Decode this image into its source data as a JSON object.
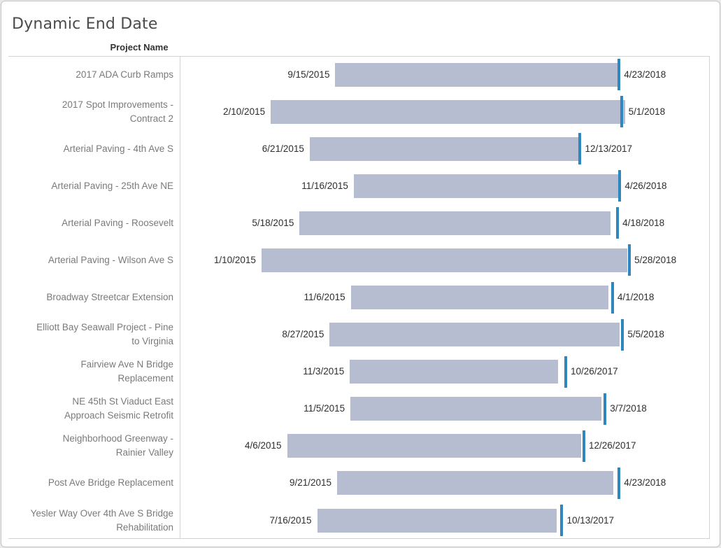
{
  "window": {
    "title": "Dynamic End Date"
  },
  "colors": {
    "bar": "#b7bdd1",
    "end_tick": "#2f87bd",
    "pane_border": "#d2d2d2",
    "window_border": "#c4c4c4",
    "row_label_text": "#7a7a7a",
    "date_label_text": "#2e2e2e",
    "title_text": "#4b4b4b",
    "header_text": "#333333",
    "page_bg": "#e9e9e9"
  },
  "chart_data": {
    "type": "gantt",
    "title": "Dynamic End Date",
    "row_header": "Project Name",
    "legend": "none",
    "grid": "off",
    "x_axis": {
      "labels_visible": false,
      "min_date": "4/15/2014",
      "max_date": "3/1/2019"
    },
    "marks": {
      "bar_means": "project duration (start date to current phase end, estimated)",
      "tick_means": "dynamic end date (labeled)"
    },
    "rows": [
      {
        "project": "2017 ADA Curb Ramps",
        "project_lines": [
          "2017 ADA Curb Ramps"
        ],
        "start": "9/15/2015",
        "end": "4/23/2018",
        "bar_end_est": "4/23/2018"
      },
      {
        "project": "2017 Spot Improvements - Contract 2",
        "project_lines": [
          "2017 Spot Improvements -",
          "Contract 2"
        ],
        "start": "2/10/2015",
        "end": "5/1/2018",
        "bar_end_est": "5/15/2018"
      },
      {
        "project": "Arterial Paving - 4th Ave S",
        "project_lines": [
          "Arterial Paving - 4th Ave S"
        ],
        "start": "6/21/2015",
        "end": "12/13/2017",
        "bar_end_est": "12/20/2017"
      },
      {
        "project": "Arterial Paving - 25th Ave NE",
        "project_lines": [
          "Arterial Paving - 25th Ave NE"
        ],
        "start": "11/16/2015",
        "end": "4/26/2018",
        "bar_end_est": "4/26/2018"
      },
      {
        "project": "Arterial Paving - Roosevelt",
        "project_lines": [
          "Arterial Paving - Roosevelt"
        ],
        "start": "5/18/2015",
        "end": "4/18/2018",
        "bar_end_est": "3/28/2018"
      },
      {
        "project": "Arterial Paving - Wilson Ave S",
        "project_lines": [
          "Arterial Paving - Wilson Ave S"
        ],
        "start": "1/10/2015",
        "end": "5/28/2018",
        "bar_end_est": "5/23/2018"
      },
      {
        "project": "Broadway Streetcar Extension",
        "project_lines": [
          "Broadway Streetcar Extension"
        ],
        "start": "11/6/2015",
        "end": "4/1/2018",
        "bar_end_est": "3/20/2018"
      },
      {
        "project": "Elliott Bay Seawall Project - Pine to Virginia",
        "project_lines": [
          "Elliott Bay Seawall Project - Pine",
          "to Virginia"
        ],
        "start": "8/27/2015",
        "end": "5/5/2018",
        "bar_end_est": "4/28/2018"
      },
      {
        "project": "Fairview Ave N Bridge Replacement",
        "project_lines": [
          "Fairview Ave N Bridge",
          "Replacement"
        ],
        "start": "11/3/2015",
        "end": "10/26/2017",
        "bar_end_est": "10/2/2017"
      },
      {
        "project": "NE 45th St Viaduct East Approach Seismic Retrofit",
        "project_lines": [
          "NE 45th St Viaduct East",
          "Approach Seismic Retrofit"
        ],
        "start": "11/5/2015",
        "end": "3/7/2018",
        "bar_end_est": "2/24/2018"
      },
      {
        "project": "Neighborhood Greenway - Rainier Valley",
        "project_lines": [
          "Neighborhood Greenway -",
          "Rainier Valley"
        ],
        "start": "4/6/2015",
        "end": "12/26/2017",
        "bar_end_est": "12/19/2017"
      },
      {
        "project": "Post Ave Bridge Replacement",
        "project_lines": [
          "Post Ave Bridge Replacement"
        ],
        "start": "9/21/2015",
        "end": "4/23/2018",
        "bar_end_est": "4/7/2018"
      },
      {
        "project": "Yesler Way Over 4th Ave S Bridge Rehabilitation",
        "project_lines": [
          "Yesler Way Over 4th Ave S Bridge",
          "Rehabilitation"
        ],
        "start": "7/16/2015",
        "end": "10/13/2017",
        "bar_end_est": "9/27/2017"
      }
    ]
  }
}
